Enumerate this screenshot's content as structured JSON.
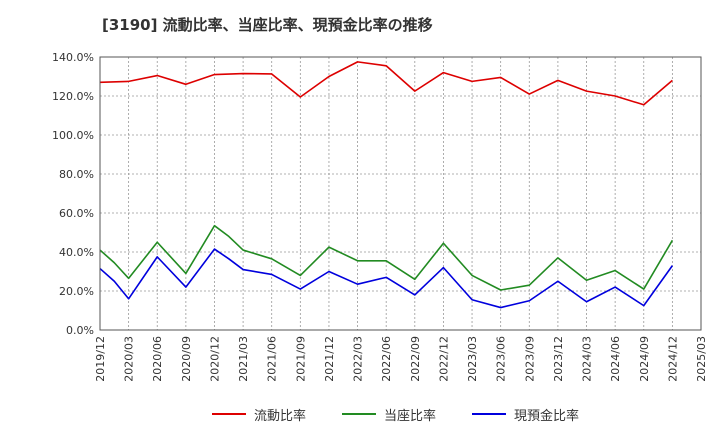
{
  "chart_data": {
    "type": "line",
    "title": "[3190]  流動比率、当座比率、現預金比率の推移",
    "xlabel": "",
    "ylabel": "",
    "x_ticks": [
      "2019/12",
      "2020/03",
      "2020/06",
      "2020/09",
      "2020/12",
      "2021/03",
      "2021/06",
      "2021/09",
      "2021/12",
      "2022/03",
      "2022/06",
      "2022/09",
      "2022/12",
      "2023/03",
      "2023/06",
      "2023/09",
      "2023/12",
      "2024/03",
      "2024/06",
      "2024/09",
      "2024/12",
      "2025/03"
    ],
    "y_ticks": [
      "0.0%",
      "20.0%",
      "40.0%",
      "60.0%",
      "80.0%",
      "100.0%",
      "120.0%",
      "140.0%"
    ],
    "ylim": [
      0,
      140
    ],
    "grid": true,
    "legend_position": "bottom",
    "series": [
      {
        "name": "流動比率",
        "color": "#dd0000",
        "points": [
          [
            0,
            127.0
          ],
          [
            1,
            127.5
          ],
          [
            2,
            130.5
          ],
          [
            3,
            126.0
          ],
          [
            4,
            131.0
          ],
          [
            5,
            131.5
          ],
          [
            6,
            131.3
          ],
          [
            7,
            119.5
          ],
          [
            8,
            130.0
          ],
          [
            9,
            137.5
          ],
          [
            10,
            135.5
          ],
          [
            11,
            122.5
          ],
          [
            12,
            132.0
          ],
          [
            13,
            127.5
          ],
          [
            14,
            129.5
          ],
          [
            15,
            121.0
          ],
          [
            16,
            128.0
          ],
          [
            17,
            122.5
          ],
          [
            18,
            120.0
          ],
          [
            19,
            115.5
          ],
          [
            20,
            128.0
          ]
        ]
      },
      {
        "name": "当座比率",
        "color": "#228b22",
        "points": [
          [
            0,
            41.0
          ],
          [
            0.5,
            34.5
          ],
          [
            1,
            26.5
          ],
          [
            2,
            45.0
          ],
          [
            3,
            29.0
          ],
          [
            4,
            53.5
          ],
          [
            4.5,
            48.0
          ],
          [
            5,
            41.0
          ],
          [
            6,
            36.5
          ],
          [
            7,
            28.0
          ],
          [
            8,
            42.5
          ],
          [
            9,
            35.5
          ],
          [
            10,
            35.5
          ],
          [
            11,
            26.0
          ],
          [
            12,
            44.5
          ],
          [
            13,
            28.0
          ],
          [
            14,
            20.5
          ],
          [
            15,
            23.0
          ],
          [
            16,
            37.0
          ],
          [
            17,
            25.5
          ],
          [
            18,
            30.5
          ],
          [
            19,
            21.0
          ],
          [
            20,
            46.0
          ]
        ]
      },
      {
        "name": "現預金比率",
        "color": "#0000dd",
        "points": [
          [
            0,
            31.5
          ],
          [
            0.5,
            25.0
          ],
          [
            1,
            16.0
          ],
          [
            2,
            37.5
          ],
          [
            3,
            22.0
          ],
          [
            4,
            41.5
          ],
          [
            4.5,
            36.5
          ],
          [
            5,
            31.0
          ],
          [
            6,
            28.5
          ],
          [
            7,
            21.0
          ],
          [
            8,
            30.0
          ],
          [
            9,
            23.5
          ],
          [
            10,
            27.0
          ],
          [
            11,
            18.0
          ],
          [
            12,
            32.0
          ],
          [
            13,
            15.5
          ],
          [
            14,
            11.5
          ],
          [
            15,
            15.0
          ],
          [
            16,
            25.0
          ],
          [
            17,
            14.5
          ],
          [
            18,
            22.0
          ],
          [
            19,
            12.5
          ],
          [
            20,
            33.0
          ]
        ]
      }
    ]
  }
}
